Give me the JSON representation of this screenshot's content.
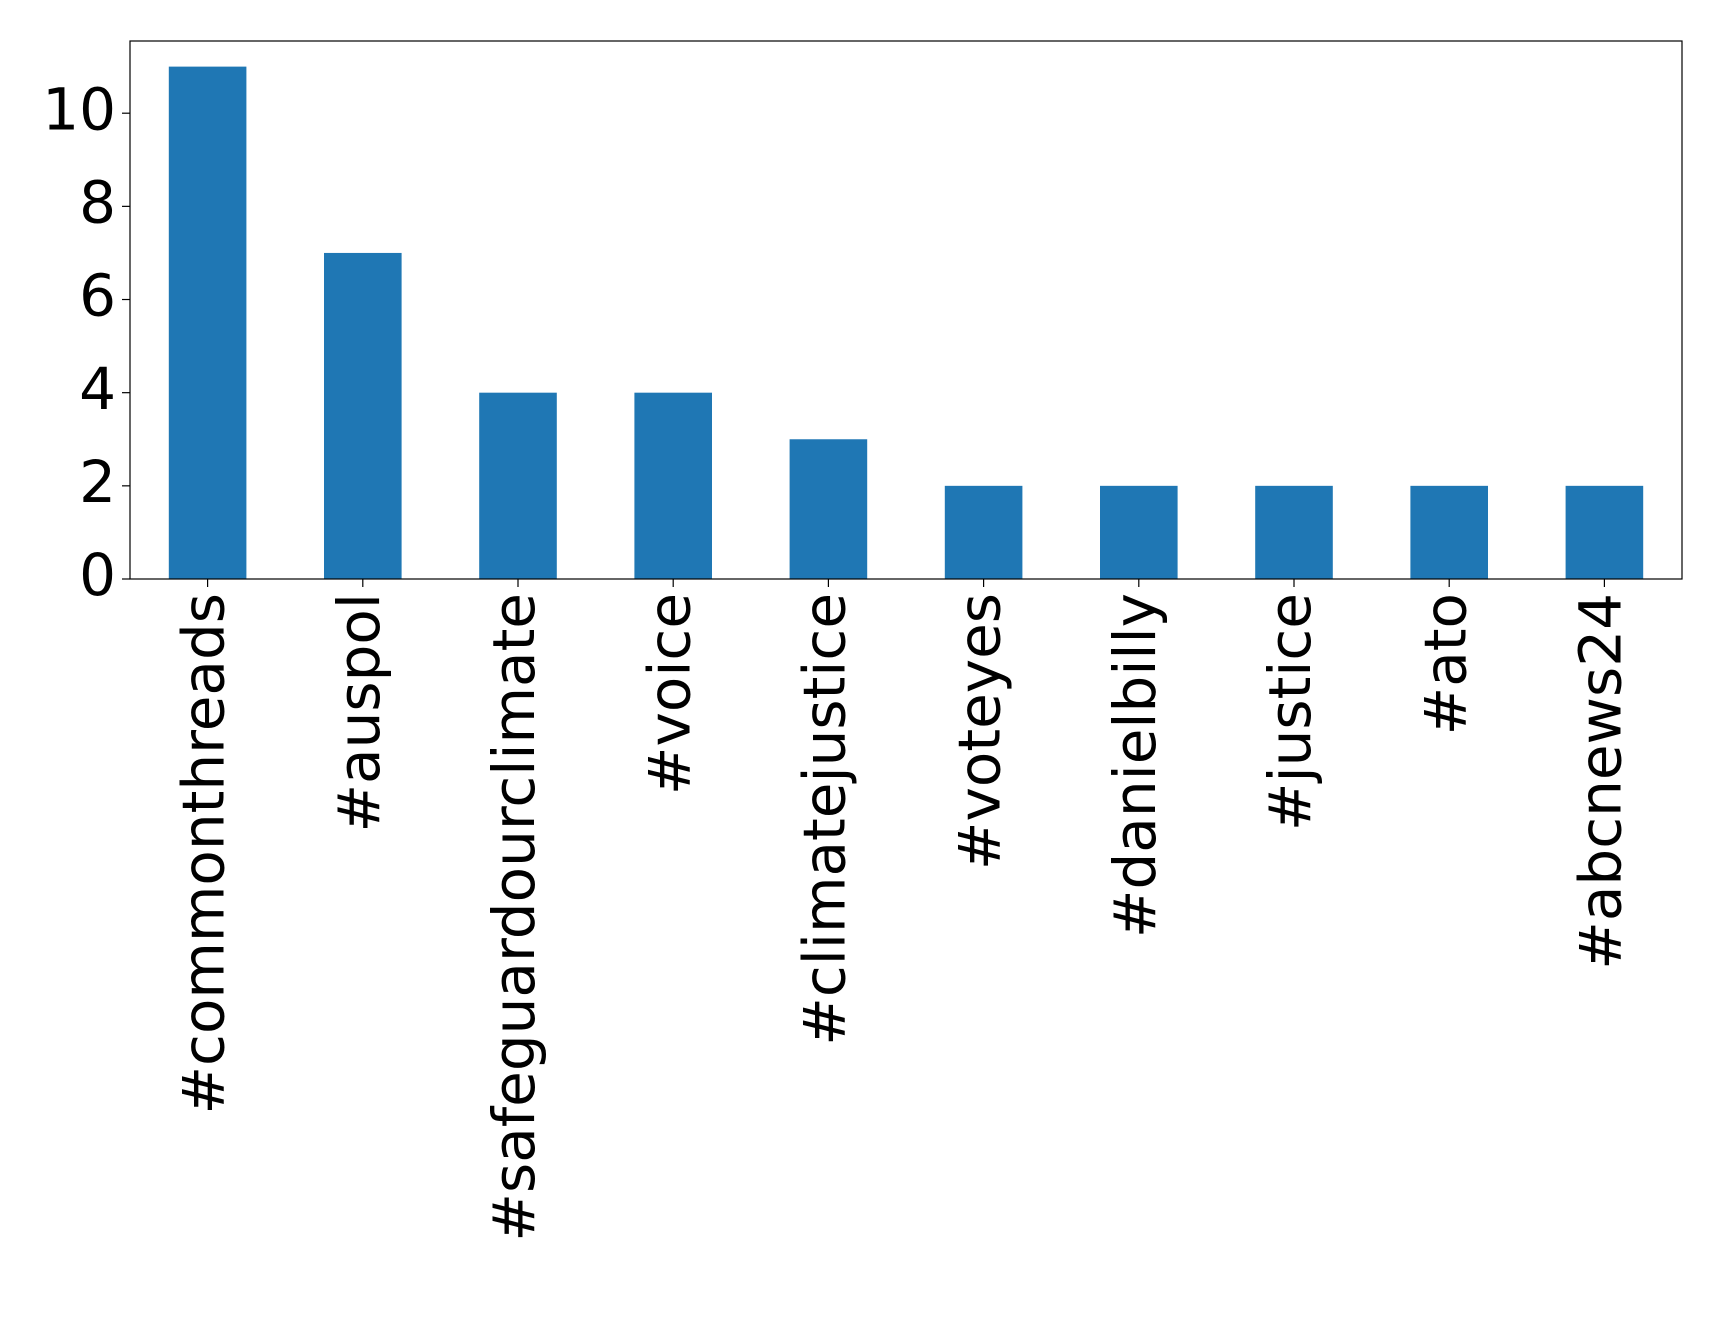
{
  "chart_data": {
    "type": "bar",
    "categories": [
      "#commonthreads",
      "#auspol",
      "#safeguardourclimate",
      "#voice",
      "#climatejustice",
      "#voteyes",
      "#danielbilly",
      "#justice",
      "#ato",
      "#abcnews24"
    ],
    "values": [
      11,
      7,
      4,
      4,
      3,
      2,
      2,
      2,
      2,
      2
    ],
    "color": "#1f77b4",
    "ylim": [
      0,
      11.55
    ],
    "yticks": [
      0,
      2,
      4,
      6,
      8,
      10
    ],
    "grid": false
  }
}
